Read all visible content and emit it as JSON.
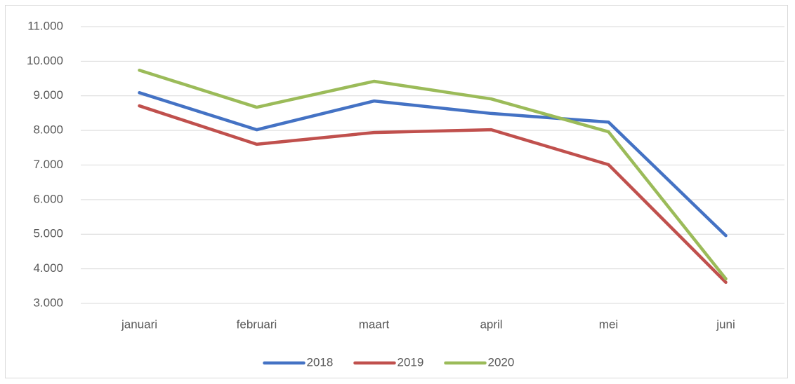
{
  "chart_data": {
    "type": "line",
    "categories": [
      "januari",
      "februari",
      "maart",
      "april",
      "mei",
      "juni"
    ],
    "series": [
      {
        "name": "2018",
        "color": "#4472c4",
        "values": [
          9090,
          8020,
          8850,
          8490,
          8240,
          4960
        ]
      },
      {
        "name": "2019",
        "color": "#c0504d",
        "values": [
          8710,
          7600,
          7940,
          8020,
          7010,
          3610
        ]
      },
      {
        "name": "2020",
        "color": "#9bbb59",
        "values": [
          9740,
          8670,
          9420,
          8910,
          7960,
          3710
        ]
      }
    ],
    "ylim": [
      3000,
      11000
    ],
    "yticks": [
      {
        "value": 3000,
        "label": "3.000"
      },
      {
        "value": 4000,
        "label": "4.000"
      },
      {
        "value": 5000,
        "label": "5.000"
      },
      {
        "value": 6000,
        "label": "6.000"
      },
      {
        "value": 7000,
        "label": "7.000"
      },
      {
        "value": 8000,
        "label": "8.000"
      },
      {
        "value": 9000,
        "label": "9.000"
      },
      {
        "value": 10000,
        "label": "10.000"
      },
      {
        "value": 11000,
        "label": "11.000"
      }
    ],
    "grid": true,
    "legend": "bottom"
  }
}
